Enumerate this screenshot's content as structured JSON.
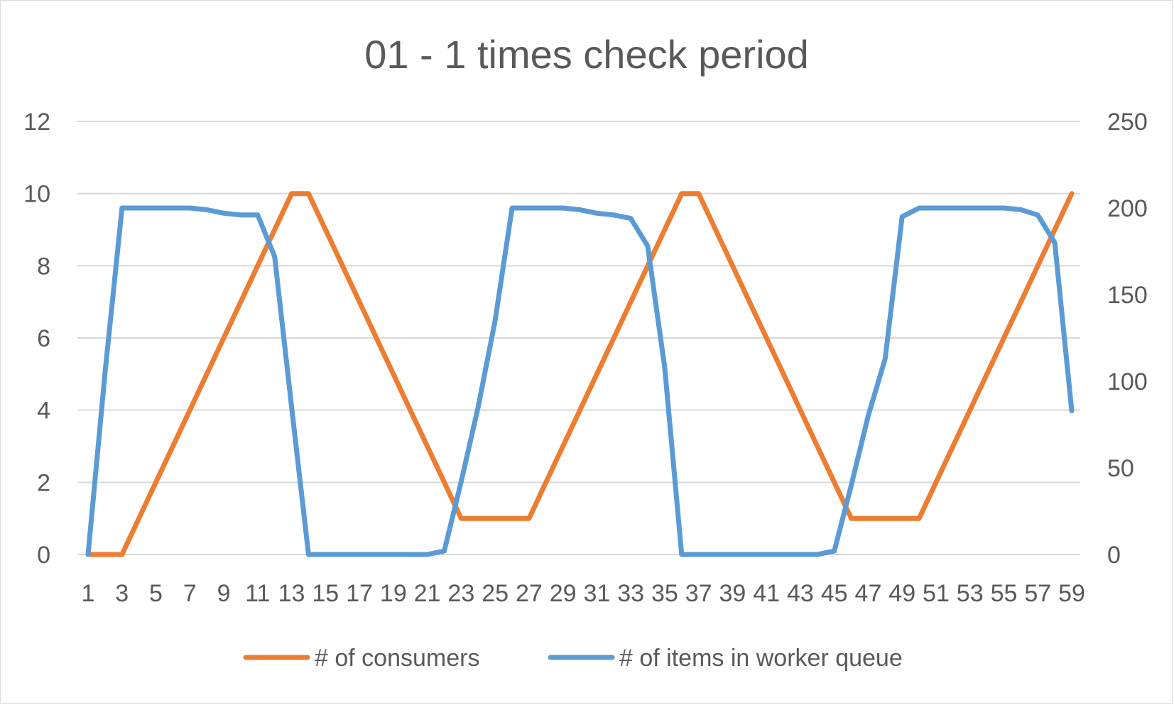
{
  "chart_data": {
    "type": "line",
    "title": "01 - 1 times check period",
    "xlabel": "",
    "ylabel": "",
    "x": [
      1,
      2,
      3,
      4,
      5,
      6,
      7,
      8,
      9,
      10,
      11,
      12,
      13,
      14,
      15,
      16,
      17,
      18,
      19,
      20,
      21,
      22,
      23,
      24,
      25,
      26,
      27,
      28,
      29,
      30,
      31,
      32,
      33,
      34,
      35,
      36,
      37,
      38,
      39,
      40,
      41,
      42,
      43,
      44,
      45,
      46,
      47,
      48,
      49,
      50,
      51,
      52,
      53,
      54,
      55,
      56,
      57,
      58,
      59
    ],
    "x_tick_labels": [
      "1",
      "3",
      "5",
      "7",
      "9",
      "11",
      "13",
      "15",
      "17",
      "19",
      "21",
      "23",
      "25",
      "27",
      "29",
      "31",
      "33",
      "35",
      "37",
      "39",
      "41",
      "43",
      "45",
      "47",
      "49",
      "51",
      "53",
      "55",
      "57",
      "59"
    ],
    "ylim_left": [
      0,
      12
    ],
    "y_ticks_left": [
      "0",
      "2",
      "4",
      "6",
      "8",
      "10",
      "12"
    ],
    "ylim_right": [
      0,
      250
    ],
    "y_ticks_right": [
      "0",
      "50",
      "100",
      "150",
      "200",
      "250"
    ],
    "grid": true,
    "legend_position": "bottom",
    "series": [
      {
        "name": "# of consumers",
        "axis": "left",
        "color": "#ED7D31",
        "values": [
          0,
          0,
          0,
          1,
          2,
          3,
          4,
          5,
          6,
          7,
          8,
          9,
          10,
          10,
          9,
          8,
          7,
          6,
          5,
          4,
          3,
          2,
          1,
          1,
          1,
          1,
          1,
          2,
          3,
          4,
          5,
          6,
          7,
          8,
          9,
          10,
          10,
          9,
          8,
          7,
          6,
          5,
          4,
          3,
          2,
          1,
          1,
          1,
          1,
          1,
          2,
          3,
          4,
          5,
          6,
          7,
          8,
          9,
          10
        ]
      },
      {
        "name": "# of items in worker queue",
        "axis": "right",
        "color": "#5B9BD5",
        "values": [
          0,
          105,
          200,
          200,
          200,
          200,
          200,
          199,
          197,
          196,
          196,
          172,
          85,
          0,
          0,
          0,
          0,
          0,
          0,
          0,
          0,
          2,
          42,
          85,
          135,
          200,
          200,
          200,
          200,
          199,
          197,
          196,
          194,
          178,
          108,
          0,
          0,
          0,
          0,
          0,
          0,
          0,
          0,
          0,
          2,
          40,
          80,
          113,
          195,
          200,
          200,
          200,
          200,
          200,
          200,
          199,
          196,
          180,
          83
        ]
      }
    ]
  }
}
